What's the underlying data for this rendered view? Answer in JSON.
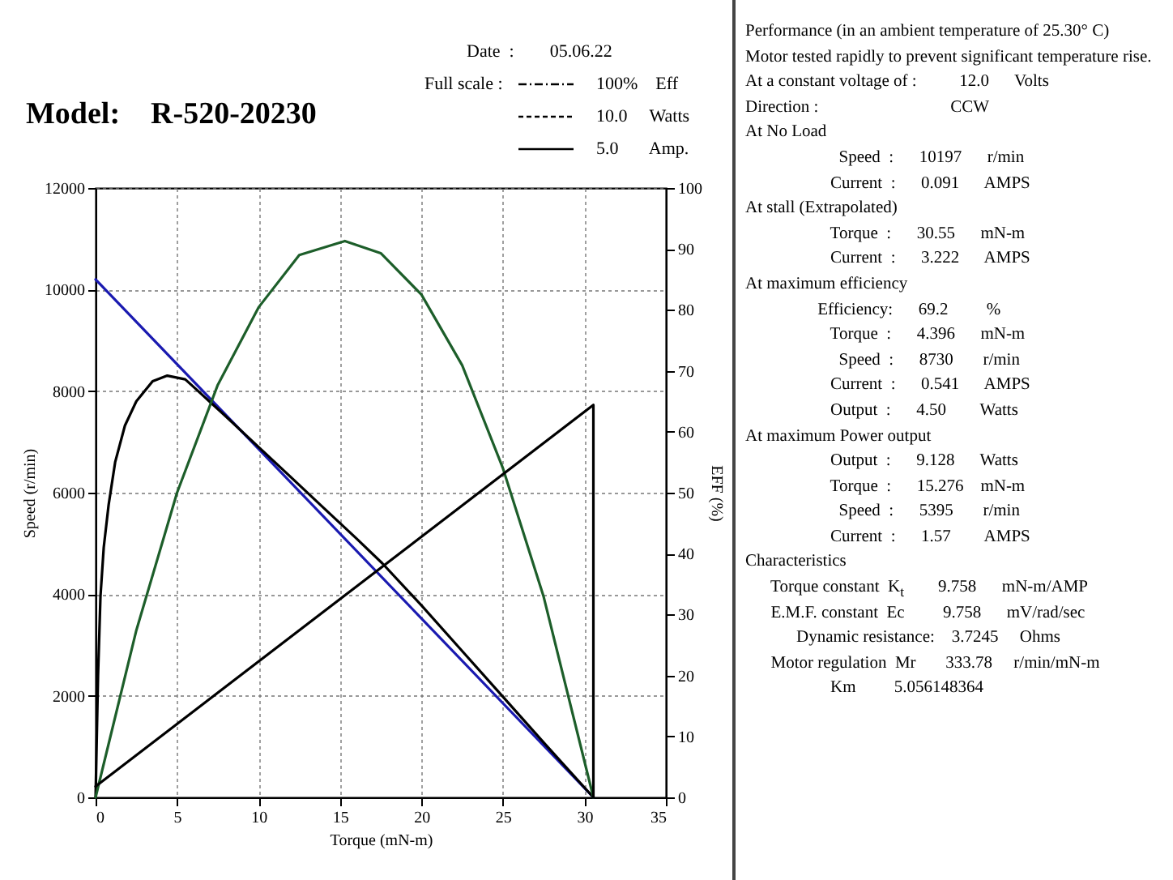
{
  "chart_data": [
    {
      "type": "line",
      "title": "Model:    R-520-20230",
      "xlabel": "Torque (mN-m)",
      "ylabel": "Speed (r/min)",
      "y2label": "EFF (%)",
      "annotations": [
        "Date  :        05.06.22",
        "Full scale :",
        "100%    Eff",
        "10.0     Watts",
        "5.0       Amp."
      ],
      "xlim": [
        0,
        35
      ],
      "xticks": [
        0,
        5,
        10,
        15,
        20,
        25,
        30,
        35
      ],
      "ylim": [
        0,
        12000
      ],
      "yticks": [
        0,
        2000,
        4000,
        6000,
        8000,
        10000,
        12000
      ],
      "y2lim": [
        0,
        100
      ],
      "y2ticks": [
        0,
        10,
        20,
        30,
        40,
        50,
        60,
        70,
        80,
        90,
        100
      ],
      "grid": true,
      "series": [
        {
          "color": "#1a1ab0",
          "x": [
            0,
            30.55
          ],
          "values": [
            10200,
            0
          ]
        },
        {
          "color": "#000000",
          "axis": "y2",
          "x": [
            0,
            0.15,
            0.3,
            0.5,
            0.8,
            1.2,
            1.8,
            2.5,
            3.5,
            4.4,
            5.5,
            6.2,
            8,
            10,
            12,
            14,
            16,
            17.6,
            20,
            22.5,
            25,
            27.5,
            30.55
          ],
          "values": [
            0,
            20,
            33,
            41,
            48,
            55,
            61,
            65,
            68.3,
            69.2,
            68.6,
            66.9,
            62.5,
            57.5,
            52.5,
            47.5,
            42.5,
            38.4,
            31.5,
            24,
            16.5,
            9,
            0
          ]
        },
        {
          "color": "#1d5e2a",
          "axis": "y2",
          "x": [
            0,
            2.5,
            5,
            7.5,
            10,
            12.5,
            15.3,
            17.5,
            20,
            22.5,
            25,
            27.5,
            30.55
          ],
          "values": [
            0,
            27.4,
            50,
            67.7,
            80.4,
            89,
            91.3,
            89.3,
            82.5,
            70.9,
            54,
            32.9,
            0
          ]
        },
        {
          "color": "#000000",
          "axis": "y2",
          "x": [
            0,
            30.55,
            30.55
          ],
          "values": [
            1.8,
            64.4,
            0
          ]
        }
      ]
    },
    {
      "type": "other",
      "annotations": [
        "Performance (in an ambient temperature of 25.30° C)",
        "Motor tested rapidly to prevent significant temperature rise.",
        "At a constant voltage of :          12.0      Volts",
        "Direction :                               CCW",
        "At No Load",
        "                      Speed  :      10197      r/min",
        "                    Current  :      0.091      AMPS",
        "At stall (Extrapolated)",
        "                    Torque  :      30.55      mN-m",
        "                    Current  :      3.222      AMPS",
        "At maximum efficiency",
        "                 Efficiency:      69.2         %",
        "                    Torque  :      4.396      mN-m",
        "                      Speed  :      8730       r/min",
        "                    Current  :      0.541      AMPS",
        "                    Output  :      4.50        Watts",
        "At maximum Power output",
        "                    Output  :      9.128      Watts",
        "                    Torque  :      15.276    mN-m",
        "                      Speed  :      5395       r/min",
        "                    Current  :      1.57        AMPS",
        "Characteristics",
        "      Torque constant  K$_{t}$        9.758      mN-m/AMP",
        "      E.M.F. constant  Ec         9.758      mV/rad/sec",
        "            Dynamic resistance:    3.7245     Ohms",
        "      Motor regulation  Mr       333.78     r/min/mN-m",
        "                    Km         5.056148364"
      ]
    }
  ]
}
